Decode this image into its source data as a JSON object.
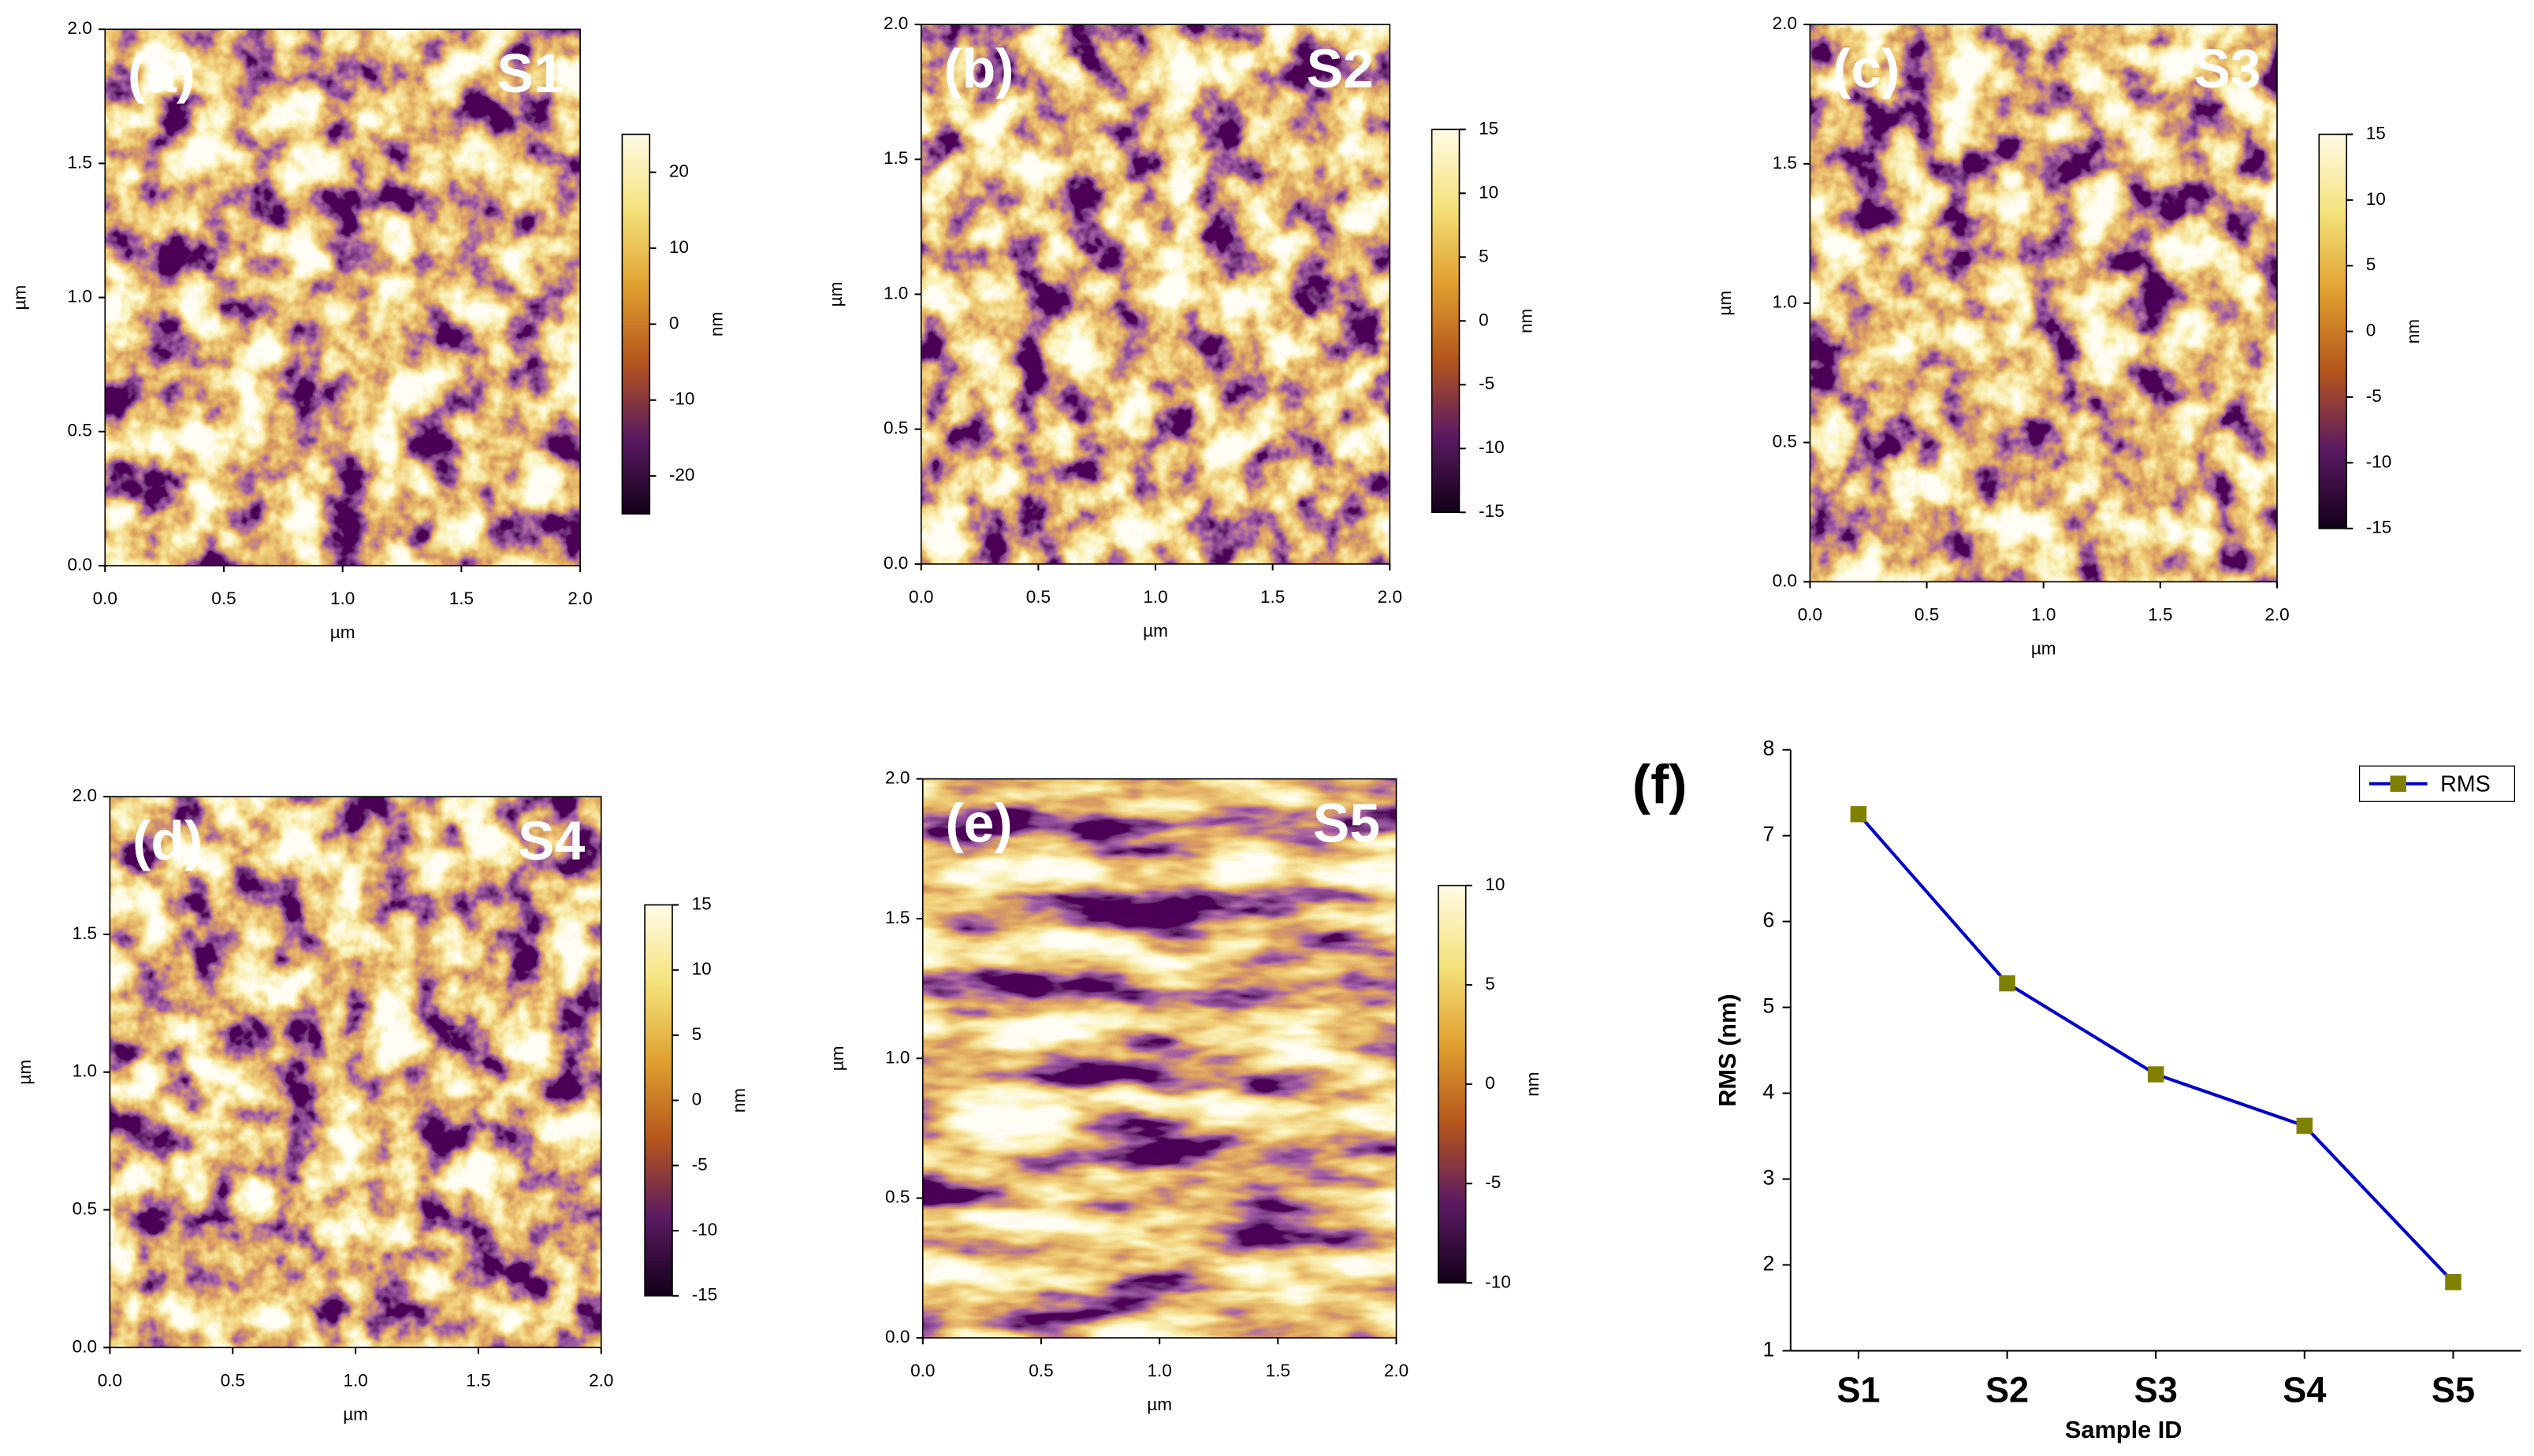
{
  "chart_data": [
    {
      "type": "heatmap",
      "label": "(a)",
      "title": "S1",
      "xlabel": "µm",
      "ylabel": "µm",
      "xlim": [
        0,
        2
      ],
      "xticks": [
        {
          "value": 0,
          "label": "0.0"
        },
        {
          "value": 0.5,
          "label": "0.5"
        },
        {
          "value": 1,
          "label": "1.0"
        },
        {
          "value": 1.5,
          "label": "1.5"
        },
        {
          "value": 2,
          "label": "2.0"
        }
      ],
      "ylim": [
        0,
        2
      ],
      "yticks": [
        {
          "value": 0,
          "label": "0.0"
        },
        {
          "value": 0.5,
          "label": "0.5"
        },
        {
          "value": 1,
          "label": "1.0"
        },
        {
          "value": 1.5,
          "label": "1.5"
        },
        {
          "value": 2,
          "label": "2.0"
        }
      ],
      "colorbar_label": "nm",
      "clim": [
        -25,
        25
      ],
      "cticks": [
        -20,
        -10,
        0,
        10,
        20
      ],
      "colormap": [
        "#120018",
        "#5a1a62",
        "#b4561c",
        "#e0a030",
        "#f4e27a",
        "#fffbe6"
      ]
    },
    {
      "type": "heatmap",
      "label": "(b)",
      "title": "S2",
      "xlabel": "µm",
      "ylabel": "µm",
      "xlim": [
        0,
        2
      ],
      "xticks": [
        {
          "value": 0,
          "label": "0.0"
        },
        {
          "value": 0.5,
          "label": "0.5"
        },
        {
          "value": 1,
          "label": "1.0"
        },
        {
          "value": 1.5,
          "label": "1.5"
        },
        {
          "value": 2,
          "label": "2.0"
        }
      ],
      "ylim": [
        0,
        2
      ],
      "yticks": [
        {
          "value": 0,
          "label": "0.0"
        },
        {
          "value": 0.5,
          "label": "0.5"
        },
        {
          "value": 1,
          "label": "1.0"
        },
        {
          "value": 1.5,
          "label": "1.5"
        },
        {
          "value": 2,
          "label": "2.0"
        }
      ],
      "colorbar_label": "nm",
      "clim": [
        -15,
        15
      ],
      "cticks": [
        -15,
        -10,
        -5,
        0,
        5,
        10,
        15
      ],
      "colormap": [
        "#120018",
        "#5a1a62",
        "#b4561c",
        "#e0a030",
        "#f4e27a",
        "#fffbe6"
      ]
    },
    {
      "type": "heatmap",
      "label": "(c)",
      "title": "S3",
      "xlabel": "µm",
      "ylabel": "µm",
      "xlim": [
        0,
        2
      ],
      "xticks": [
        {
          "value": 0,
          "label": "0.0"
        },
        {
          "value": 0.5,
          "label": "0.5"
        },
        {
          "value": 1,
          "label": "1.0"
        },
        {
          "value": 1.5,
          "label": "1.5"
        },
        {
          "value": 2,
          "label": "2.0"
        }
      ],
      "ylim": [
        0,
        2
      ],
      "yticks": [
        {
          "value": 0,
          "label": "0.0"
        },
        {
          "value": 0.5,
          "label": "0.5"
        },
        {
          "value": 1,
          "label": "1.0"
        },
        {
          "value": 1.5,
          "label": "1.5"
        },
        {
          "value": 2,
          "label": "2.0"
        }
      ],
      "colorbar_label": "nm",
      "clim": [
        -15,
        15
      ],
      "cticks": [
        -15,
        -10,
        -5,
        0,
        5,
        10,
        15
      ],
      "colormap": [
        "#120018",
        "#5a1a62",
        "#b4561c",
        "#e0a030",
        "#f4e27a",
        "#fffbe6"
      ]
    },
    {
      "type": "heatmap",
      "label": "(d)",
      "title": "S4",
      "xlabel": "µm",
      "ylabel": "µm",
      "xlim": [
        0,
        2
      ],
      "xticks": [
        {
          "value": 0,
          "label": "0.0"
        },
        {
          "value": 0.5,
          "label": "0.5"
        },
        {
          "value": 1,
          "label": "1.0"
        },
        {
          "value": 1.5,
          "label": "1.5"
        },
        {
          "value": 2,
          "label": "2.0"
        }
      ],
      "ylim": [
        0,
        2
      ],
      "yticks": [
        {
          "value": 0,
          "label": "0.0"
        },
        {
          "value": 0.5,
          "label": "0.5"
        },
        {
          "value": 1,
          "label": "1.0"
        },
        {
          "value": 1.5,
          "label": "1.5"
        },
        {
          "value": 2,
          "label": "2.0"
        }
      ],
      "colorbar_label": "nm",
      "clim": [
        -15,
        15
      ],
      "cticks": [
        -15,
        -10,
        -5,
        0,
        5,
        10,
        15
      ],
      "colormap": [
        "#120018",
        "#5a1a62",
        "#b4561c",
        "#e0a030",
        "#f4e27a",
        "#fffbe6"
      ]
    },
    {
      "type": "heatmap",
      "label": "(e)",
      "title": "S5",
      "xlabel": "µm",
      "ylabel": "µm",
      "xlim": [
        0,
        2
      ],
      "xticks": [
        {
          "value": 0,
          "label": "0.0"
        },
        {
          "value": 0.5,
          "label": "0.5"
        },
        {
          "value": 1,
          "label": "1.0"
        },
        {
          "value": 1.5,
          "label": "1.5"
        },
        {
          "value": 2,
          "label": "2.0"
        }
      ],
      "ylim": [
        0,
        2
      ],
      "yticks": [
        {
          "value": 0,
          "label": "0.0"
        },
        {
          "value": 0.5,
          "label": "0.5"
        },
        {
          "value": 1,
          "label": "1.0"
        },
        {
          "value": 1.5,
          "label": "1.5"
        },
        {
          "value": 2,
          "label": "2.0"
        }
      ],
      "colorbar_label": "nm",
      "clim": [
        -10,
        10
      ],
      "cticks": [
        -10,
        -5,
        0,
        5,
        10
      ],
      "colormap": [
        "#120018",
        "#5a1a62",
        "#b4561c",
        "#e0a030",
        "#f4e27a",
        "#fffbe6"
      ]
    },
    {
      "type": "line",
      "label": "(f)",
      "xlabel": "Sample ID",
      "ylabel": "RMS (nm)",
      "categories": [
        "S1",
        "S2",
        "S3",
        "S4",
        "S5"
      ],
      "series": [
        {
          "name": "RMS",
          "color": "#0000cc",
          "marker_color": "#808000",
          "values": [
            7.25,
            5.28,
            4.22,
            3.62,
            1.8
          ]
        }
      ],
      "ylim": [
        1,
        8
      ],
      "yticks": [
        1,
        2,
        3,
        4,
        5,
        6,
        7,
        8
      ],
      "legend": "upper right"
    }
  ]
}
